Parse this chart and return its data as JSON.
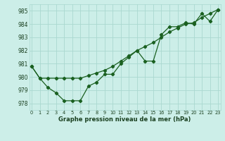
{
  "xlabel": "Graphe pression niveau de la mer (hPa)",
  "bg_color": "#cceee8",
  "grid_color": "#aad8d0",
  "line_color": "#1a6020",
  "x_ticks": [
    0,
    1,
    2,
    3,
    4,
    5,
    6,
    7,
    8,
    9,
    10,
    11,
    12,
    13,
    14,
    15,
    16,
    17,
    18,
    19,
    20,
    21,
    22,
    23
  ],
  "ylim": [
    977.5,
    985.5
  ],
  "yticks": [
    978,
    979,
    980,
    981,
    982,
    983,
    984,
    985
  ],
  "xlim": [
    -0.3,
    23.3
  ],
  "series1": [
    980.8,
    979.9,
    979.2,
    978.8,
    978.2,
    978.2,
    978.2,
    979.3,
    979.6,
    980.2,
    980.2,
    981.0,
    981.5,
    982.0,
    981.2,
    981.2,
    983.2,
    983.8,
    983.8,
    984.1,
    984.0,
    984.8,
    984.2,
    985.1
  ],
  "series2": [
    980.8,
    979.9,
    979.9,
    979.9,
    979.9,
    979.9,
    979.9,
    980.1,
    980.3,
    980.5,
    980.8,
    981.2,
    981.6,
    982.0,
    982.3,
    982.6,
    983.0,
    983.4,
    983.7,
    984.0,
    984.1,
    984.5,
    984.8,
    985.1
  ]
}
